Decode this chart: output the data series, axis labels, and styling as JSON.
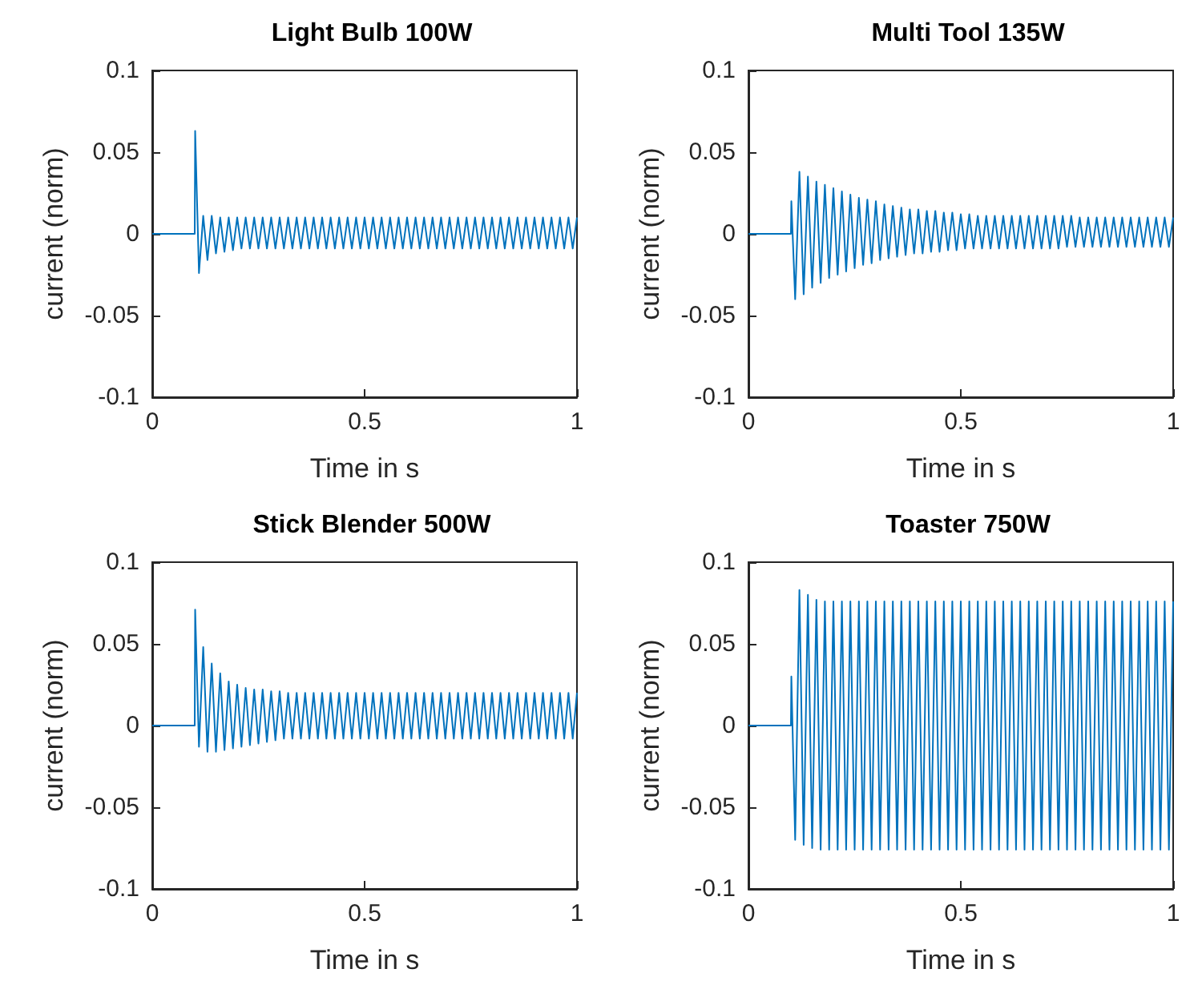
{
  "chart_data": [
    {
      "type": "line",
      "title": "Light Bulb 100W",
      "xlabel": "Time in s",
      "ylabel": "current (norm)",
      "xlim": [
        0,
        1
      ],
      "xticks": [
        0,
        0.5,
        1
      ],
      "ylim": [
        -0.1,
        0.1
      ],
      "yticks": [
        -0.1,
        -0.05,
        0,
        0.05,
        0.1
      ],
      "x": [
        0,
        0.1,
        0.101,
        0.11,
        0.12,
        0.13,
        0.14,
        0.15,
        0.16,
        0.17,
        0.18,
        0.19,
        0.2,
        0.21,
        0.22,
        0.23,
        0.24,
        0.25,
        0.26,
        0.27,
        0.28,
        0.29,
        0.3,
        0.31,
        0.32,
        0.33,
        0.34,
        0.35,
        0.36,
        0.37,
        0.38,
        0.39,
        0.4,
        0.41,
        0.42,
        0.43,
        0.44,
        0.45,
        0.46,
        0.47,
        0.48,
        0.49,
        0.5,
        0.51,
        0.52,
        0.53,
        0.54,
        0.55,
        0.56,
        0.57,
        0.58,
        0.59,
        0.6,
        0.61,
        0.62,
        0.63,
        0.64,
        0.65,
        0.66,
        0.67,
        0.68,
        0.69,
        0.7,
        0.71,
        0.72,
        0.73,
        0.74,
        0.75,
        0.76,
        0.77,
        0.78,
        0.79,
        0.8,
        0.81,
        0.82,
        0.83,
        0.84,
        0.85,
        0.86,
        0.87,
        0.88,
        0.89,
        0.9,
        0.91,
        0.92,
        0.93,
        0.94,
        0.95,
        0.96,
        0.97,
        0.98,
        0.99,
        1
      ],
      "series": [
        {
          "color": "#0072bd",
          "values": [
            0,
            0,
            0.063,
            -0.024,
            0.011,
            -0.016,
            0.011,
            -0.012,
            0.01,
            -0.011,
            0.01,
            -0.01,
            0.01,
            -0.009,
            0.01,
            -0.009,
            0.01,
            -0.009,
            0.01,
            -0.009,
            0.01,
            -0.009,
            0.01,
            -0.009,
            0.01,
            -0.009,
            0.01,
            -0.009,
            0.01,
            -0.009,
            0.01,
            -0.009,
            0.01,
            -0.009,
            0.01,
            -0.009,
            0.01,
            -0.009,
            0.01,
            -0.009,
            0.01,
            -0.009,
            0.01,
            -0.009,
            0.01,
            -0.009,
            0.01,
            -0.009,
            0.01,
            -0.009,
            0.01,
            -0.009,
            0.01,
            -0.009,
            0.01,
            -0.009,
            0.01,
            -0.009,
            0.01,
            -0.009,
            0.01,
            -0.009,
            0.01,
            -0.009,
            0.01,
            -0.009,
            0.01,
            -0.009,
            0.01,
            -0.009,
            0.01,
            -0.009,
            0.01,
            -0.009,
            0.01,
            -0.009,
            0.01,
            -0.009,
            0.01,
            -0.009,
            0.01,
            -0.009,
            0.01,
            -0.009,
            0.01,
            -0.009,
            0.01,
            -0.009,
            0.01,
            -0.009,
            0.01,
            -0.009,
            0.01
          ]
        }
      ]
    },
    {
      "type": "line",
      "title": "Multi Tool 135W",
      "xlabel": "Time in s",
      "ylabel": "current (norm)",
      "xlim": [
        0,
        1
      ],
      "xticks": [
        0,
        0.5,
        1
      ],
      "ylim": [
        -0.1,
        0.1
      ],
      "yticks": [
        -0.1,
        -0.05,
        0,
        0.05,
        0.1
      ],
      "x": [
        0,
        0.1,
        0.101,
        0.11,
        0.12,
        0.13,
        0.14,
        0.15,
        0.16,
        0.17,
        0.18,
        0.19,
        0.2,
        0.21,
        0.22,
        0.23,
        0.24,
        0.25,
        0.26,
        0.27,
        0.28,
        0.29,
        0.3,
        0.31,
        0.32,
        0.33,
        0.34,
        0.35,
        0.36,
        0.37,
        0.38,
        0.39,
        0.4,
        0.41,
        0.42,
        0.43,
        0.44,
        0.45,
        0.46,
        0.47,
        0.48,
        0.49,
        0.5,
        0.51,
        0.52,
        0.53,
        0.54,
        0.55,
        0.56,
        0.57,
        0.58,
        0.59,
        0.6,
        0.61,
        0.62,
        0.63,
        0.64,
        0.65,
        0.66,
        0.67,
        0.68,
        0.69,
        0.7,
        0.71,
        0.72,
        0.73,
        0.74,
        0.75,
        0.76,
        0.77,
        0.78,
        0.79,
        0.8,
        0.81,
        0.82,
        0.83,
        0.84,
        0.85,
        0.86,
        0.87,
        0.88,
        0.89,
        0.9,
        0.91,
        0.92,
        0.93,
        0.94,
        0.95,
        0.96,
        0.97,
        0.98,
        0.99,
        1
      ],
      "series": [
        {
          "color": "#0072bd",
          "values": [
            0,
            0,
            0.02,
            -0.04,
            0.038,
            -0.037,
            0.035,
            -0.033,
            0.032,
            -0.03,
            0.03,
            -0.027,
            0.028,
            -0.025,
            0.026,
            -0.023,
            0.024,
            -0.021,
            0.022,
            -0.019,
            0.021,
            -0.018,
            0.02,
            -0.016,
            0.018,
            -0.015,
            0.017,
            -0.014,
            0.016,
            -0.013,
            0.015,
            -0.012,
            0.015,
            -0.012,
            0.014,
            -0.011,
            0.014,
            -0.011,
            0.013,
            -0.01,
            0.013,
            -0.01,
            0.012,
            -0.009,
            0.012,
            -0.009,
            0.011,
            -0.009,
            0.011,
            -0.009,
            0.011,
            -0.009,
            0.011,
            -0.009,
            0.011,
            -0.009,
            0.011,
            -0.009,
            0.011,
            -0.009,
            0.011,
            -0.009,
            0.011,
            -0.009,
            0.011,
            -0.009,
            0.011,
            -0.008,
            0.011,
            -0.008,
            0.01,
            -0.008,
            0.01,
            -0.008,
            0.01,
            -0.008,
            0.01,
            -0.008,
            0.01,
            -0.008,
            0.01,
            -0.008,
            0.01,
            -0.008,
            0.01,
            -0.008,
            0.01,
            -0.008,
            0.01,
            -0.008,
            0.01,
            -0.008,
            0.01
          ]
        }
      ]
    },
    {
      "type": "line",
      "title": "Stick Blender 500W",
      "xlabel": "Time in s",
      "ylabel": "current (norm)",
      "xlim": [
        0,
        1
      ],
      "xticks": [
        0,
        0.5,
        1
      ],
      "ylim": [
        -0.1,
        0.1
      ],
      "yticks": [
        -0.1,
        -0.05,
        0,
        0.05,
        0.1
      ],
      "x": [
        0,
        0.1,
        0.101,
        0.11,
        0.12,
        0.13,
        0.14,
        0.15,
        0.16,
        0.17,
        0.18,
        0.19,
        0.2,
        0.21,
        0.22,
        0.23,
        0.24,
        0.25,
        0.26,
        0.27,
        0.28,
        0.29,
        0.3,
        0.31,
        0.32,
        0.33,
        0.34,
        0.35,
        0.36,
        0.37,
        0.38,
        0.39,
        0.4,
        0.41,
        0.42,
        0.43,
        0.44,
        0.45,
        0.46,
        0.47,
        0.48,
        0.49,
        0.5,
        0.51,
        0.52,
        0.53,
        0.54,
        0.55,
        0.56,
        0.57,
        0.58,
        0.59,
        0.6,
        0.61,
        0.62,
        0.63,
        0.64,
        0.65,
        0.66,
        0.67,
        0.68,
        0.69,
        0.7,
        0.71,
        0.72,
        0.73,
        0.74,
        0.75,
        0.76,
        0.77,
        0.78,
        0.79,
        0.8,
        0.81,
        0.82,
        0.83,
        0.84,
        0.85,
        0.86,
        0.87,
        0.88,
        0.89,
        0.9,
        0.91,
        0.92,
        0.93,
        0.94,
        0.95,
        0.96,
        0.97,
        0.98,
        0.99,
        1
      ],
      "series": [
        {
          "color": "#0072bd",
          "values": [
            0,
            0,
            0.071,
            -0.013,
            0.048,
            -0.016,
            0.038,
            -0.016,
            0.032,
            -0.015,
            0.027,
            -0.014,
            0.025,
            -0.013,
            0.023,
            -0.012,
            0.022,
            -0.011,
            0.022,
            -0.01,
            0.021,
            -0.009,
            0.021,
            -0.008,
            0.02,
            -0.008,
            0.02,
            -0.008,
            0.02,
            -0.008,
            0.02,
            -0.008,
            0.02,
            -0.008,
            0.02,
            -0.008,
            0.02,
            -0.008,
            0.02,
            -0.008,
            0.02,
            -0.008,
            0.02,
            -0.008,
            0.02,
            -0.008,
            0.02,
            -0.008,
            0.02,
            -0.008,
            0.02,
            -0.008,
            0.02,
            -0.008,
            0.02,
            -0.008,
            0.02,
            -0.008,
            0.02,
            -0.008,
            0.02,
            -0.008,
            0.02,
            -0.008,
            0.02,
            -0.008,
            0.02,
            -0.008,
            0.02,
            -0.008,
            0.02,
            -0.008,
            0.02,
            -0.008,
            0.02,
            -0.008,
            0.02,
            -0.008,
            0.02,
            -0.008,
            0.02,
            -0.008,
            0.02,
            -0.008,
            0.02,
            -0.008,
            0.02,
            -0.008,
            0.02,
            -0.008,
            0.02,
            -0.008,
            0.02
          ]
        }
      ]
    },
    {
      "type": "line",
      "title": "Toaster 750W",
      "xlabel": "Time in s",
      "ylabel": "current (norm)",
      "xlim": [
        0,
        1
      ],
      "xticks": [
        0,
        0.5,
        1
      ],
      "ylim": [
        -0.1,
        0.1
      ],
      "yticks": [
        -0.1,
        -0.05,
        0,
        0.05,
        0.1
      ],
      "x": [
        0,
        0.1,
        0.101,
        0.11,
        0.12,
        0.13,
        0.14,
        0.15,
        0.16,
        0.17,
        0.18,
        0.19,
        0.2,
        0.21,
        0.22,
        0.23,
        0.24,
        0.25,
        0.26,
        0.27,
        0.28,
        0.29,
        0.3,
        0.31,
        0.32,
        0.33,
        0.34,
        0.35,
        0.36,
        0.37,
        0.38,
        0.39,
        0.4,
        0.41,
        0.42,
        0.43,
        0.44,
        0.45,
        0.46,
        0.47,
        0.48,
        0.49,
        0.5,
        0.51,
        0.52,
        0.53,
        0.54,
        0.55,
        0.56,
        0.57,
        0.58,
        0.59,
        0.6,
        0.61,
        0.62,
        0.63,
        0.64,
        0.65,
        0.66,
        0.67,
        0.68,
        0.69,
        0.7,
        0.71,
        0.72,
        0.73,
        0.74,
        0.75,
        0.76,
        0.77,
        0.78,
        0.79,
        0.8,
        0.81,
        0.82,
        0.83,
        0.84,
        0.85,
        0.86,
        0.87,
        0.88,
        0.89,
        0.9,
        0.91,
        0.92,
        0.93,
        0.94,
        0.95,
        0.96,
        0.97,
        0.98,
        0.99,
        1
      ],
      "series": [
        {
          "color": "#0072bd",
          "values": [
            0,
            0,
            0.03,
            -0.07,
            0.083,
            -0.073,
            0.08,
            -0.075,
            0.077,
            -0.076,
            0.076,
            -0.076,
            0.076,
            -0.076,
            0.076,
            -0.076,
            0.076,
            -0.076,
            0.076,
            -0.076,
            0.076,
            -0.076,
            0.076,
            -0.076,
            0.076,
            -0.076,
            0.076,
            -0.076,
            0.076,
            -0.076,
            0.076,
            -0.076,
            0.076,
            -0.076,
            0.076,
            -0.076,
            0.076,
            -0.076,
            0.076,
            -0.076,
            0.076,
            -0.076,
            0.076,
            -0.076,
            0.076,
            -0.076,
            0.076,
            -0.076,
            0.076,
            -0.076,
            0.076,
            -0.076,
            0.076,
            -0.076,
            0.076,
            -0.076,
            0.076,
            -0.076,
            0.076,
            -0.076,
            0.076,
            -0.076,
            0.076,
            -0.076,
            0.076,
            -0.076,
            0.076,
            -0.076,
            0.076,
            -0.076,
            0.076,
            -0.076,
            0.076,
            -0.076,
            0.076,
            -0.076,
            0.076,
            -0.076,
            0.076,
            -0.076,
            0.076,
            -0.076,
            0.076,
            -0.076,
            0.076,
            -0.076,
            0.076,
            -0.076,
            0.076,
            -0.076,
            0.076,
            -0.076,
            0.076
          ]
        }
      ]
    }
  ]
}
